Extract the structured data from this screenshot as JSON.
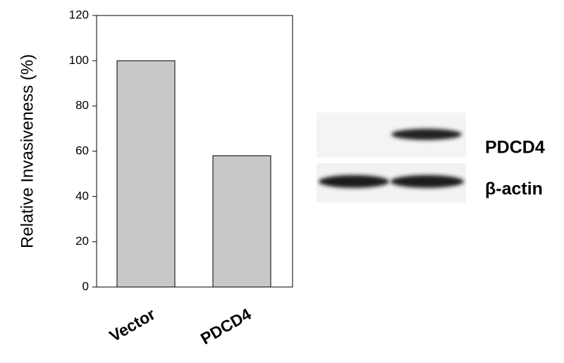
{
  "chart_data": {
    "type": "bar",
    "ylabel": "Relative Invasiveness (%)",
    "categories": [
      "Vector",
      "PDCD4"
    ],
    "values": [
      100,
      58
    ],
    "color": "#c8c8c8",
    "ylim": [
      0,
      120
    ],
    "yticks": [
      0,
      20,
      40,
      60,
      80,
      100,
      120
    ],
    "grid": false,
    "annotations": [
      "PDCD4",
      "β-actin"
    ]
  }
}
